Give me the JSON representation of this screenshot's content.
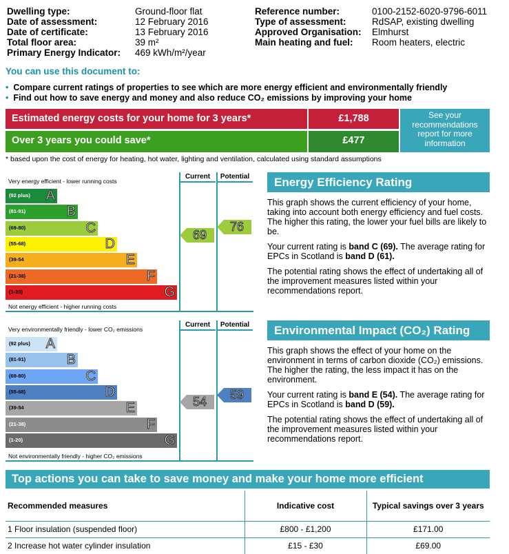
{
  "header": {
    "left": [
      {
        "label": "Dwelling type:",
        "value": "Ground-floor flat"
      },
      {
        "label": "Date of assessment:",
        "value": "12 February 2016"
      },
      {
        "label": "Date of certificate:",
        "value": "13 February 2016"
      },
      {
        "label": "Total floor area:",
        "value": "39 m²"
      },
      {
        "label": "Primary Energy Indicator:",
        "value": "469 kWh/m²/year"
      }
    ],
    "right": [
      {
        "label": "Reference number:",
        "value": "0100-2152-6020-9796-6011"
      },
      {
        "label": "Type of assessment:",
        "value": "RdSAP, existing dwelling"
      },
      {
        "label": "Approved Organisation:",
        "value": "Elmhurst"
      },
      {
        "label": "Main heating and fuel:",
        "value": "Room heaters, electric"
      }
    ]
  },
  "use": {
    "title": "You can use this document to:",
    "bullets": [
      "Compare current ratings of properties to see which are more energy efficient and environmentally friendly",
      "Find out how to save energy and money and also reduce CO₂ emissions by improving your home"
    ]
  },
  "costs": {
    "estimated_label": "Estimated energy costs for your home for 3 years*",
    "estimated_value": "£1,788",
    "save_label": "Over 3 years you could save*",
    "save_value": "£477",
    "see_report": "See your recommendations report for more information",
    "footnote": "* based upon the cost of energy for heating, hot water, lighting and ventilation, calculated using standard assumptions",
    "colors": {
      "red": "#c4203a",
      "green": "#3c9f1f",
      "teal": "#3aa6b9"
    }
  },
  "energy_chart": {
    "top_caption": "Very energy efficient - lower running costs",
    "bottom_caption": "Not energy efficient - higher running costs",
    "current_header": "Current",
    "potential_header": "Potential",
    "bands": [
      {
        "range": "(92 plus)",
        "letter": "A",
        "color": "#1a8a3b"
      },
      {
        "range": "(81-91)",
        "letter": "B",
        "color": "#2c9f2c"
      },
      {
        "range": "(69-80)",
        "letter": "C",
        "color": "#9ccb3b"
      },
      {
        "range": "(55-68)",
        "letter": "D",
        "color": "#fff200"
      },
      {
        "range": "(39-54",
        "letter": "E",
        "color": "#f5ae1e"
      },
      {
        "range": "(21-38)",
        "letter": "F",
        "color": "#ec6a25"
      },
      {
        "range": "(1-20)",
        "letter": "G",
        "color": "#e01b22"
      }
    ],
    "current": "69",
    "current_color": "#9ccb3b",
    "potential": "76",
    "potential_color": "#9ccb3b"
  },
  "env_chart": {
    "top_caption": "Very environmentally friendly - lower CO₂ emissions",
    "bottom_caption": "Not environmentally friendly - higher CO₂ emissions",
    "current_header": "Current",
    "potential_header": "Potential",
    "bands": [
      {
        "range": "(92 plus)",
        "letter": "A",
        "color": "#cce3f6"
      },
      {
        "range": "(81-91)",
        "letter": "B",
        "color": "#99c2ec"
      },
      {
        "range": "(69-80)",
        "letter": "C",
        "color": "#6ea6f5"
      },
      {
        "range": "(55-68)",
        "letter": "D",
        "color": "#4f80c1"
      },
      {
        "range": "(39-54",
        "letter": "E",
        "color": "#a6a6a6"
      },
      {
        "range": "(21-38)",
        "letter": "F",
        "color": "#8c8c8c"
      },
      {
        "range": "(1-20)",
        "letter": "G",
        "color": "#6b6b6b"
      }
    ],
    "current": "54",
    "current_color": "#a6a6a6",
    "potential": "59",
    "potential_color": "#4f80c1"
  },
  "eer": {
    "title": "Energy Efficiency Rating",
    "p1": "This graph shows the current efficiency of your home, taking into account both energy efficiency and fuel costs. The higher this rating, the lower your fuel bills are likely to be.",
    "p2a": "Your current rating is ",
    "p2b": "band C (69).",
    "p2c": " The average rating for EPCs in Scotland is ",
    "p2d": "band D (61).",
    "p3": "The potential rating shows the effect of undertaking all of the improvement measures listed within your recommendations report."
  },
  "eir": {
    "title": "Environmental Impact (CO₂) Rating",
    "p1": "This graph shows the effect of your home on the environment in terms of carbon dioxide (CO₂) emissions. The higher the rating, the less impact it has on the environment.",
    "p2a": "Your current rating is ",
    "p2b": "band E (54).",
    "p2c": " The average rating for EPCs in Scotland is ",
    "p2d": "band D (59).",
    "p3": "The potential rating shows the effect of undertaking all of the improvement measures listed within your recommendations report."
  },
  "actions": {
    "title": "Top actions you can take to save money and make your home more efficient",
    "headers": [
      "Recommended measures",
      "Indicative cost",
      "Typical savings over 3 years"
    ],
    "rows": [
      [
        "1 Floor insulation (suspended floor)",
        "£800 - £1,200",
        "£171.00"
      ],
      [
        "2 Increase hot water cylinder insulation",
        "£15 - £30",
        "£69.00"
      ]
    ]
  }
}
